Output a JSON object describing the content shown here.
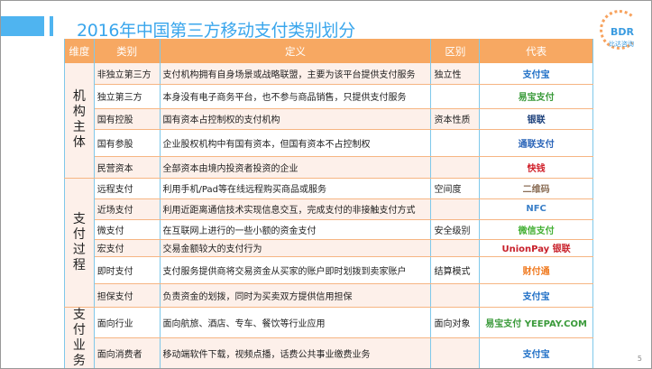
{
  "title": "2016年中国第三方移动支付类别划分",
  "logo": {
    "text": "BDR",
    "subtitle": "比达咨询"
  },
  "headers": [
    "维度",
    "类别",
    "定义",
    "区别",
    "代表"
  ],
  "groups": [
    {
      "dimension": "机构主体",
      "rows": [
        {
          "category": "非独立第三方",
          "definition": "支付机构拥有自身场景或战略联盟，主要为该平台提供支付服务",
          "difference": "独立性",
          "rep": "支付宝",
          "rep_color": "#1f6fc6"
        },
        {
          "category": "独立第三方",
          "definition": "本身没有电子商务平台，也不参与商品销售，只提供支付服务",
          "difference": "",
          "rep": "易宝支付",
          "rep_color": "#3a9a3a"
        },
        {
          "category": "国有控股",
          "definition": "国有资本占控制权的支付机构",
          "difference": "资本性质",
          "rep": "银联",
          "rep_color": "#1b3f7a"
        },
        {
          "category": "国有参股",
          "definition": "企业股权机构中有国有资本，但国有资本不占控制权",
          "difference": "",
          "rep": "通联支付",
          "rep_color": "#2a64b8"
        },
        {
          "category": "民营资本",
          "definition": "全部资本由境内投资者投资的企业",
          "difference": "",
          "rep": "快钱",
          "rep_color": "#d0202a"
        }
      ]
    },
    {
      "dimension": "支付过程",
      "rows": [
        {
          "category": "远程支付",
          "definition": "利用手机/Pad等在线远程购买商品或服务",
          "difference": "空间度",
          "rep": "二维码",
          "rep_color": "#8a6d55"
        },
        {
          "category": "近场支付",
          "definition": "利用近距离通信技术实现信息交互，完成支付的非接触支付方式",
          "difference": "",
          "rep": "NFC",
          "rep_color": "#3a7fc8"
        },
        {
          "category": "微支付",
          "definition": "在互联网上进行的一些小额的资金支付",
          "difference": "安全级别",
          "rep": "微信支付",
          "rep_color": "#44b035"
        },
        {
          "category": "宏支付",
          "definition": "交易金额较大的支付行为",
          "difference": "",
          "rep": "UnionPay 银联",
          "rep_color": "#c8202a"
        },
        {
          "category": "即时支付",
          "definition": "支付服务提供商将交易资金从买家的账户即时划拨到卖家账户",
          "difference": "结算模式",
          "rep": "财付通",
          "rep_color": "#f07a20"
        },
        {
          "category": "担保支付",
          "definition": "负责资金的划拨，同时为买卖双方提供信用担保",
          "difference": "",
          "rep": "支付宝",
          "rep_color": "#1f6fc6"
        }
      ]
    },
    {
      "dimension": "支付业务",
      "rows": [
        {
          "category": "面向行业",
          "definition": "面向航旅、酒店、专车、餐饮等行业应用",
          "difference": "面向对象",
          "rep": "易宝支付 YEEPAY.COM",
          "rep_color": "#3a9a3a"
        },
        {
          "category": "面向消费者",
          "definition": "移动端软件下载，视频点播，话费公共事业缴费业务",
          "difference": "",
          "rep": "支付宝",
          "rep_color": "#1f6fc6"
        }
      ]
    }
  ],
  "page_number": "5"
}
